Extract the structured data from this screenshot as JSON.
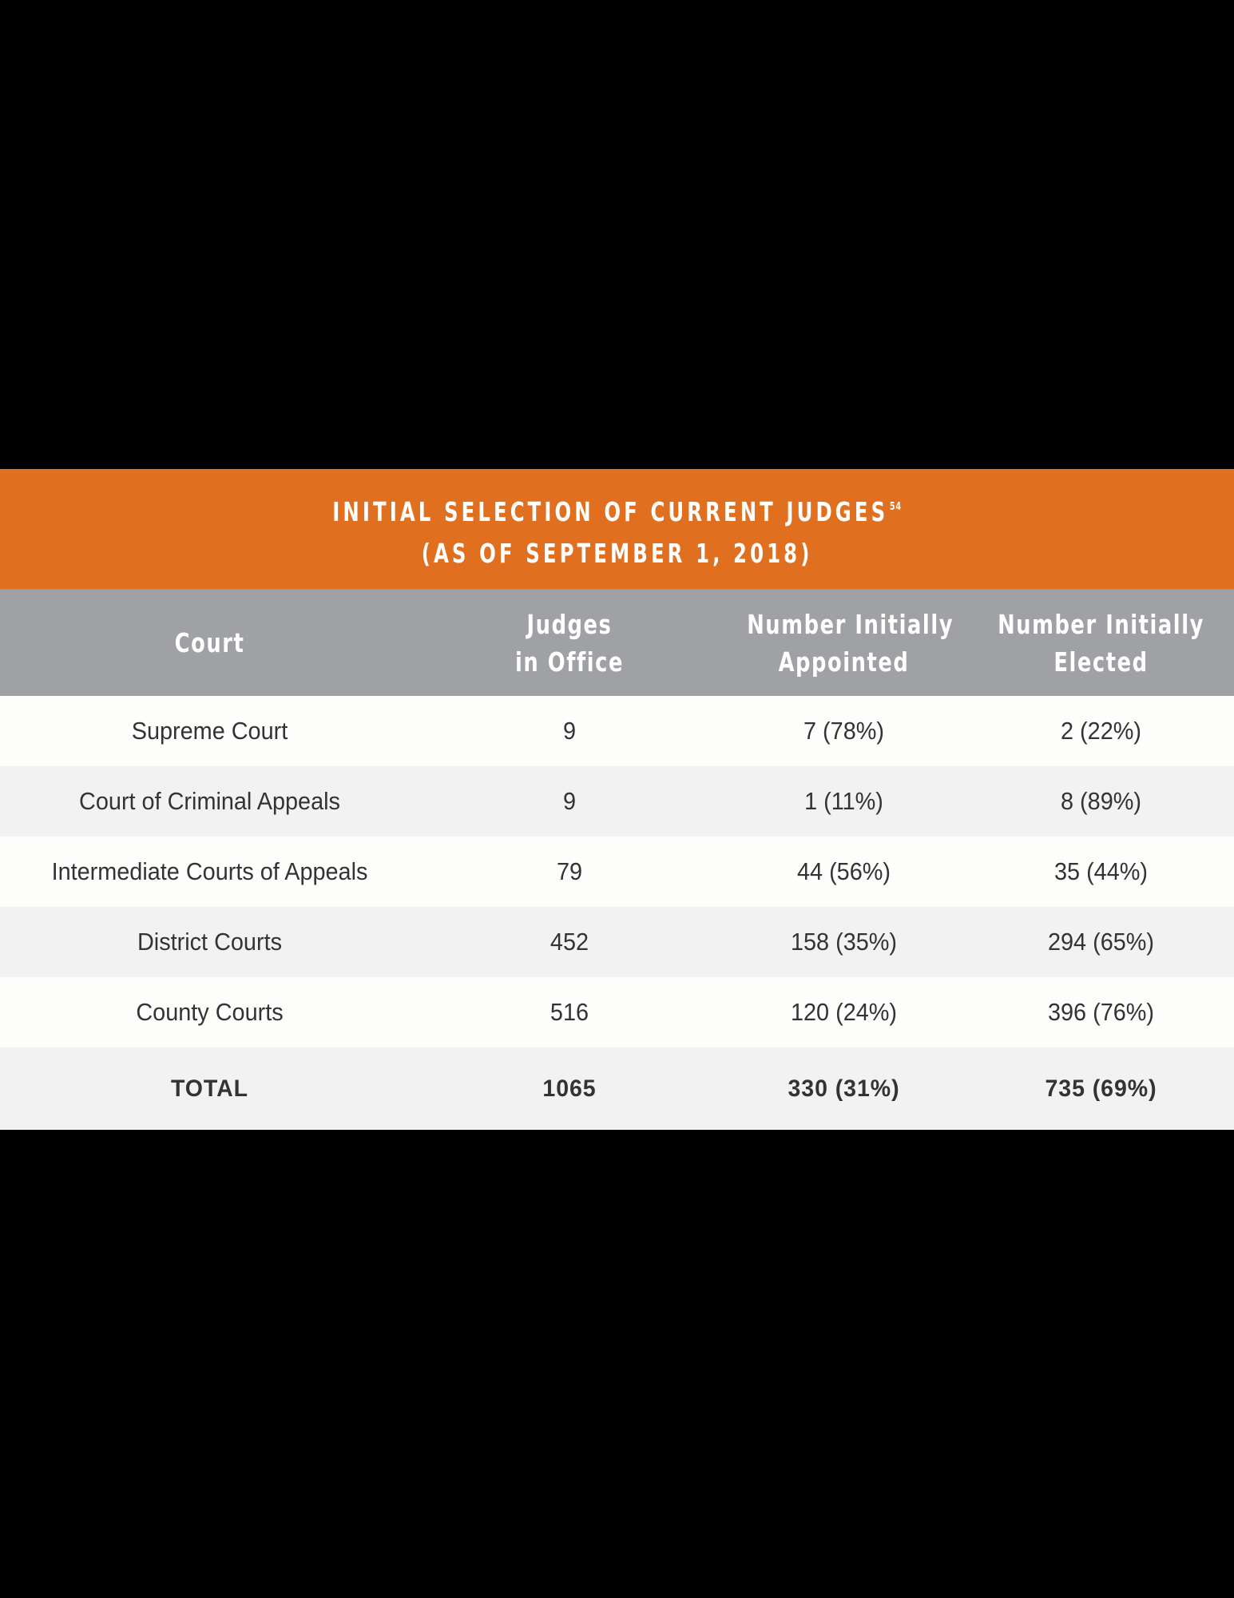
{
  "title": {
    "line1": "INITIAL SELECTION OF CURRENT JUDGES",
    "footnote": "54",
    "line2": "(AS OF SEPTEMBER 1, 2018)"
  },
  "colors": {
    "title_band": "#E0701F",
    "header_band": "#A0A1A4",
    "row_light": "#FDFDFC",
    "row_shaded": "#F2F2F2",
    "text": "#333333",
    "background": "#000000"
  },
  "table": {
    "columns": [
      {
        "line1": "Court",
        "line2": ""
      },
      {
        "line1": "Judges",
        "line2": "in Office"
      },
      {
        "line1": "Number Initially",
        "line2": "Appointed"
      },
      {
        "line1": "Number Initially",
        "line2": "Elected"
      }
    ],
    "rows": [
      {
        "court": "Supreme Court",
        "judges": "9",
        "appointed": "7 (78%)",
        "elected": "2 (22%)"
      },
      {
        "court": "Court of Criminal Appeals",
        "judges": "9",
        "appointed": "1 (11%)",
        "elected": "8 (89%)"
      },
      {
        "court": "Intermediate Courts of Appeals",
        "judges": "79",
        "appointed": "44 (56%)",
        "elected": "35 (44%)"
      },
      {
        "court": "District Courts",
        "judges": "452",
        "appointed": "158 (35%)",
        "elected": "294 (65%)"
      },
      {
        "court": "County Courts",
        "judges": "516",
        "appointed": "120 (24%)",
        "elected": "396 (76%)"
      }
    ],
    "total": {
      "court": "TOTAL",
      "judges": "1065",
      "appointed": "330 (31%)",
      "elected": "735 (69%)"
    }
  }
}
